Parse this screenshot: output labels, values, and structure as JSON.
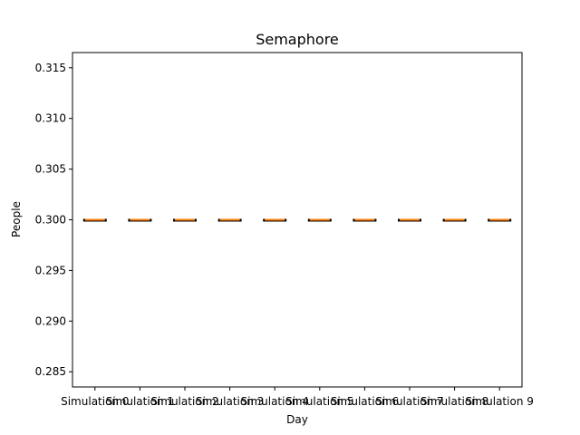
{
  "chart_data": {
    "type": "boxplot",
    "title": "Semaphore",
    "xlabel": "Day",
    "ylabel": "People",
    "categories": [
      "Simulation 0",
      "Simulation 1",
      "Simulation 2",
      "Simulation 3",
      "Simulation 4",
      "Simulation 5",
      "Simulation 6",
      "Simulation 7",
      "Simulation 8",
      "Simulation 9"
    ],
    "series": [
      {
        "values": [
          0.3,
          0.3,
          0.3,
          0.3,
          0.3,
          0.3,
          0.3,
          0.3,
          0.3,
          0.3
        ],
        "stats": [
          {
            "min": 0.3,
            "q1": 0.3,
            "median": 0.3,
            "q3": 0.3,
            "max": 0.3
          },
          {
            "min": 0.3,
            "q1": 0.3,
            "median": 0.3,
            "q3": 0.3,
            "max": 0.3
          },
          {
            "min": 0.3,
            "q1": 0.3,
            "median": 0.3,
            "q3": 0.3,
            "max": 0.3
          },
          {
            "min": 0.3,
            "q1": 0.3,
            "median": 0.3,
            "q3": 0.3,
            "max": 0.3
          },
          {
            "min": 0.3,
            "q1": 0.3,
            "median": 0.3,
            "q3": 0.3,
            "max": 0.3
          },
          {
            "min": 0.3,
            "q1": 0.3,
            "median": 0.3,
            "q3": 0.3,
            "max": 0.3
          },
          {
            "min": 0.3,
            "q1": 0.3,
            "median": 0.3,
            "q3": 0.3,
            "max": 0.3
          },
          {
            "min": 0.3,
            "q1": 0.3,
            "median": 0.3,
            "q3": 0.3,
            "max": 0.3
          },
          {
            "min": 0.3,
            "q1": 0.3,
            "median": 0.3,
            "q3": 0.3,
            "max": 0.3
          },
          {
            "min": 0.3,
            "q1": 0.3,
            "median": 0.3,
            "q3": 0.3,
            "max": 0.3
          }
        ]
      }
    ],
    "ylim": [
      0.2835,
      0.3165
    ],
    "yticks": [
      0.285,
      0.29,
      0.295,
      0.3,
      0.305,
      0.31,
      0.315
    ],
    "ytick_labels": [
      "0.285",
      "0.290",
      "0.295",
      "0.300",
      "0.305",
      "0.310",
      "0.315"
    ],
    "grid": false,
    "colors": {
      "box": "#000000",
      "median": "#ff7f0e",
      "axis": "#000000",
      "background": "#ffffff"
    }
  }
}
